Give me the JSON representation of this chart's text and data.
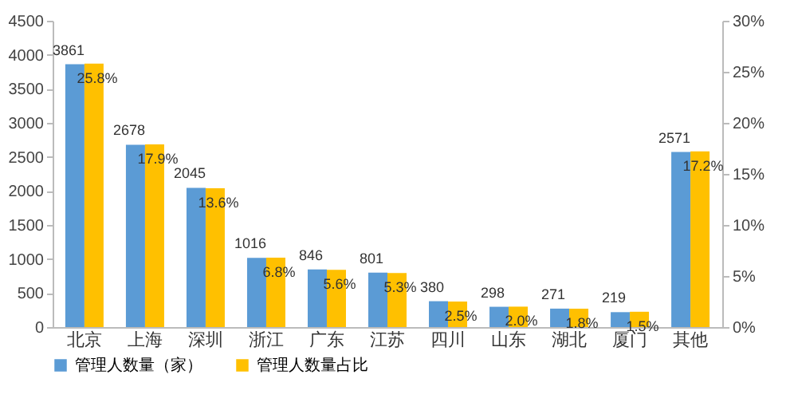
{
  "chart_data": {
    "type": "bar",
    "categories": [
      "北京",
      "上海",
      "深圳",
      "浙江",
      "广东",
      "江苏",
      "四川",
      "山东",
      "湖北",
      "厦门",
      "其他"
    ],
    "series": [
      {
        "name": "管理人数量（家）",
        "color": "#5b9bd5",
        "values": [
          3861,
          2678,
          2045,
          1016,
          846,
          801,
          380,
          298,
          271,
          219,
          2571
        ],
        "value_labels": [
          "3861",
          "2678",
          "2045",
          "1016",
          "846",
          "801",
          "380",
          "298",
          "271",
          "219",
          "2571"
        ]
      },
      {
        "name": "管理人数量占比",
        "color": "#ffc000",
        "axis": "y2",
        "values": [
          25.8,
          17.9,
          13.6,
          6.8,
          5.6,
          5.3,
          2.5,
          2.0,
          1.8,
          1.5,
          17.2
        ],
        "value_labels": [
          "25.8%",
          "17.9%",
          "13.6%",
          "6.8%",
          "5.6%",
          "5.3%",
          "2.5%",
          "2.0%",
          "1.8%",
          "1.5%",
          "17.2%"
        ]
      }
    ],
    "ylim": [
      0,
      4500
    ],
    "yticks": [
      0,
      500,
      1000,
      1500,
      2000,
      2500,
      3000,
      3500,
      4000,
      4500
    ],
    "y2lim": [
      0,
      30
    ],
    "y2ticks": [
      {
        "value": 0,
        "label": "0%"
      },
      {
        "value": 5,
        "label": "5%"
      },
      {
        "value": 10,
        "label": "10%"
      },
      {
        "value": 15,
        "label": "15%"
      },
      {
        "value": 20,
        "label": "20%"
      },
      {
        "value": 25,
        "label": "25%"
      },
      {
        "value": 30,
        "label": "30%"
      }
    ],
    "grid": false,
    "legend": "bottom"
  }
}
